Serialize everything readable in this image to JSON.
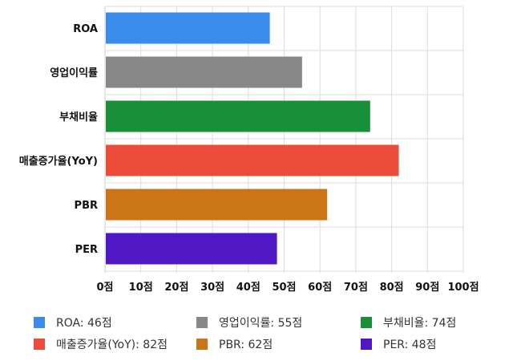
{
  "chart_data": {
    "type": "bar",
    "orientation": "horizontal",
    "categories": [
      "ROA",
      "영업이익률",
      "부채비율",
      "매출증가율(YoY)",
      "PBR",
      "PER"
    ],
    "values": [
      46,
      55,
      74,
      82,
      62,
      48
    ],
    "colors": [
      "#3b8beb",
      "#888888",
      "#1a8f3a",
      "#ee4c3a",
      "#cc7418",
      "#4f18c4"
    ],
    "xlim": [
      0,
      100
    ],
    "x_ticks": [
      "0점",
      "10점",
      "20점",
      "30점",
      "40점",
      "50점",
      "60점",
      "70점",
      "80점",
      "90점",
      "100점"
    ],
    "grid": true,
    "legend_position": "bottom",
    "legend": [
      {
        "label": "ROA: 46점",
        "color": "#3b8beb"
      },
      {
        "label": "영업이익률: 55점",
        "color": "#888888"
      },
      {
        "label": "부채비율: 74점",
        "color": "#1a8f3a"
      },
      {
        "label": "매출증가율(YoY): 82점",
        "color": "#ee4c3a"
      },
      {
        "label": "PBR: 62점",
        "color": "#cc7418"
      },
      {
        "label": "PER: 48점",
        "color": "#4f18c4"
      }
    ]
  }
}
